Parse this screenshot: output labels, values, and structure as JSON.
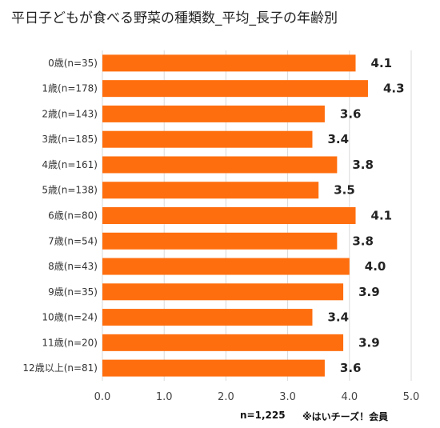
{
  "chart_data": {
    "type": "bar",
    "orientation": "horizontal",
    "title": "平日子どもが食べる野菜の種類数_平均_長子の年齢別",
    "categories": [
      "0歳(n=35)",
      "1歳(n=178)",
      "2歳(n=143)",
      "3歳(n=185)",
      "4歳(n=161)",
      "5歳(n=138)",
      "6歳(n=80)",
      "7歳(n=54)",
      "8歳(n=43)",
      "9歳(n=35)",
      "10歳(n=24)",
      "11歳(n=20)",
      "12歳以上(n=81)"
    ],
    "values": [
      4.1,
      4.3,
      3.6,
      3.4,
      3.8,
      3.5,
      4.1,
      3.8,
      4.0,
      3.9,
      3.4,
      3.9,
      3.6
    ],
    "value_labels": [
      "4.1",
      "4.3",
      "3.6",
      "3.4",
      "3.8",
      "3.5",
      "4.1",
      "3.8",
      "4.0",
      "3.9",
      "3.4",
      "3.9",
      "3.6"
    ],
    "xlim": [
      0,
      5
    ],
    "xticks": [
      "0.0",
      "1.0",
      "2.0",
      "3.0",
      "4.0",
      "5.0"
    ],
    "grid": "vertical",
    "bar_color": "#FF6E0E",
    "grid_color": "#D9D9D9"
  },
  "footnotes": {
    "sample": "n=1,225",
    "member": "※はいチーズ！会員"
  }
}
